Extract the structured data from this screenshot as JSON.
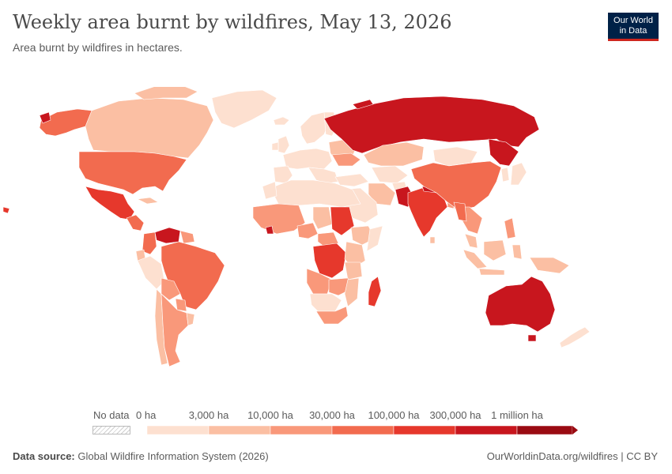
{
  "title": "Weekly area burnt by wildfires, May 13, 2026",
  "subtitle": "Area burnt by wildfires in hectares.",
  "logo": {
    "line1": "Our World",
    "line2": "in Data"
  },
  "legend": {
    "no_data_label": "No data",
    "bins": [
      {
        "label": "0 ha",
        "color": "#fde0d0"
      },
      {
        "label": "3,000 ha",
        "color": "#fbbfa3"
      },
      {
        "label": "10,000 ha",
        "color": "#f9987a"
      },
      {
        "label": "30,000 ha",
        "color": "#f26b4f"
      },
      {
        "label": "100,000 ha",
        "color": "#e6382c"
      },
      {
        "label": "300,000 ha",
        "color": "#c8161e"
      },
      {
        "label": "1 million ha",
        "color": "#9a0b12"
      }
    ]
  },
  "footer": {
    "source_label": "Data source:",
    "source_text": "Global Wildfire Information System (2026)",
    "url": "OurWorldinData.org/wildfires | CC BY"
  }
}
